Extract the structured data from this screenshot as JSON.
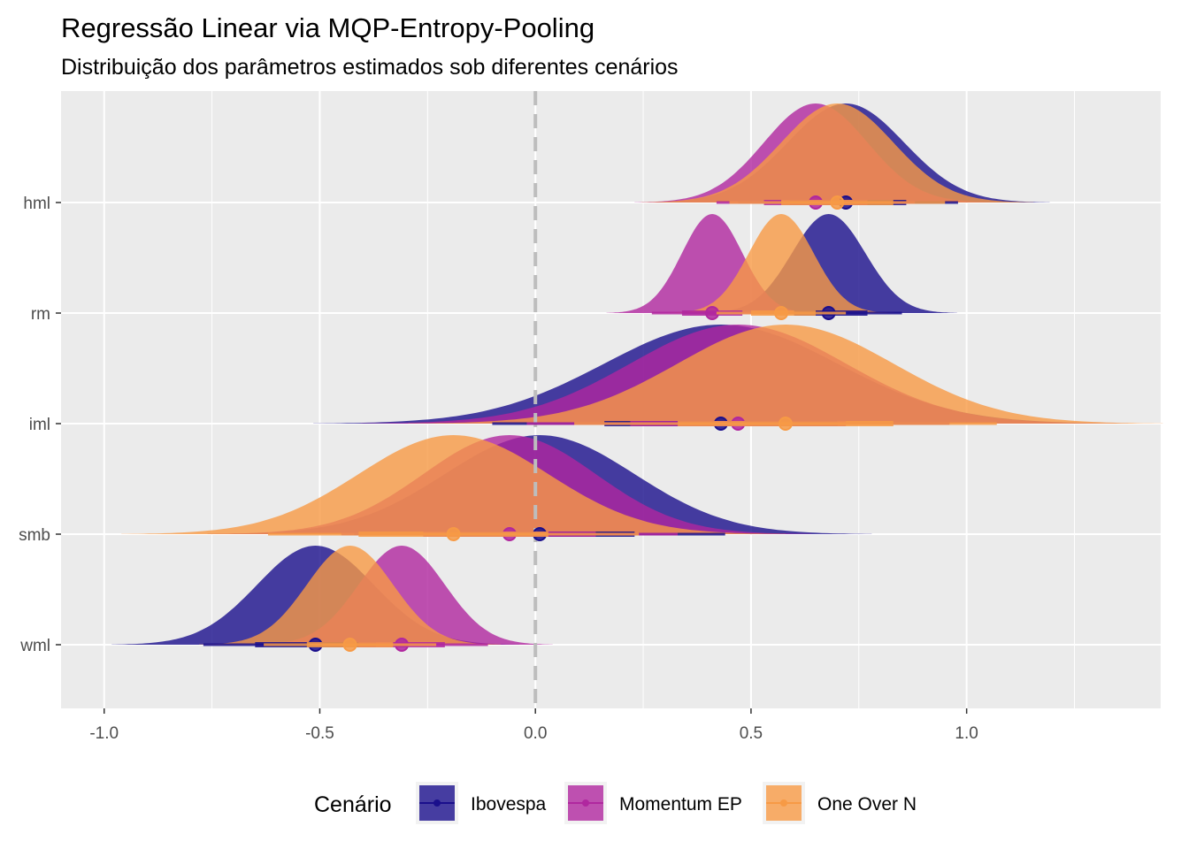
{
  "chart_data": {
    "type": "halfeye",
    "title": "Regressão Linear via MQP-Entropy-Pooling",
    "subtitle": "Distribuição dos parâmetros estimados sob diferentes cenários",
    "xlabel": "",
    "ylabel": "",
    "xlim": [
      -1.1,
      1.45
    ],
    "x_ticks": [
      -1.0,
      -0.5,
      0.0,
      0.5,
      1.0
    ],
    "x_tick_labels": [
      "-1.0",
      "-0.5",
      "0.0",
      "0.5",
      "1.0"
    ],
    "categories": [
      "hml",
      "rm",
      "iml",
      "smb",
      "wml"
    ],
    "reference_line": {
      "x": 0,
      "style": "dashed"
    },
    "grid": true,
    "legend": {
      "title": "Cenário",
      "position": "bottom"
    },
    "series": [
      {
        "name": "Ibovespa",
        "color": "#1a0f8c",
        "params": [
          {
            "variable": "hml",
            "median": 0.72,
            "sd": 0.135,
            "interval_66": [
              0.59,
              0.86
            ],
            "interval_95": [
              0.47,
              0.98
            ]
          },
          {
            "variable": "rm",
            "median": 0.68,
            "sd": 0.085,
            "interval_66": [
              0.6,
              0.77
            ],
            "interval_95": [
              0.52,
              0.85
            ]
          },
          {
            "variable": "iml",
            "median": 0.43,
            "sd": 0.27,
            "interval_66": [
              0.16,
              0.7
            ],
            "interval_95": [
              -0.1,
              0.96
            ]
          },
          {
            "variable": "smb",
            "median": 0.01,
            "sd": 0.22,
            "interval_66": [
              -0.21,
              0.23
            ],
            "interval_95": [
              -0.42,
              0.44
            ]
          },
          {
            "variable": "wml",
            "median": -0.51,
            "sd": 0.135,
            "interval_66": [
              -0.65,
              -0.37
            ],
            "interval_95": [
              -0.77,
              -0.24
            ]
          }
        ]
      },
      {
        "name": "Momentum EP",
        "color": "#b0279f",
        "params": [
          {
            "variable": "hml",
            "median": 0.65,
            "sd": 0.12,
            "interval_66": [
              0.53,
              0.77
            ],
            "interval_95": [
              0.42,
              0.88
            ]
          },
          {
            "variable": "rm",
            "median": 0.41,
            "sd": 0.07,
            "interval_66": [
              0.34,
              0.48
            ],
            "interval_95": [
              0.27,
              0.55
            ]
          },
          {
            "variable": "iml",
            "median": 0.47,
            "sd": 0.25,
            "interval_66": [
              0.22,
              0.72
            ],
            "interval_95": [
              -0.02,
              0.96
            ]
          },
          {
            "variable": "smb",
            "median": -0.06,
            "sd": 0.2,
            "interval_66": [
              -0.26,
              0.14
            ],
            "interval_95": [
              -0.45,
              0.33
            ]
          },
          {
            "variable": "wml",
            "median": -0.31,
            "sd": 0.1,
            "interval_66": [
              -0.41,
              -0.21
            ],
            "interval_95": [
              -0.51,
              -0.11
            ]
          }
        ]
      },
      {
        "name": "One Over N",
        "color": "#f79a45",
        "params": [
          {
            "variable": "hml",
            "median": 0.7,
            "sd": 0.13,
            "interval_66": [
              0.57,
              0.83
            ],
            "interval_95": [
              0.45,
              0.95
            ]
          },
          {
            "variable": "rm",
            "median": 0.57,
            "sd": 0.075,
            "interval_66": [
              0.5,
              0.65
            ],
            "interval_95": [
              0.42,
              0.72
            ]
          },
          {
            "variable": "iml",
            "median": 0.58,
            "sd": 0.25,
            "interval_66": [
              0.33,
              0.83
            ],
            "interval_95": [
              0.09,
              1.07
            ]
          },
          {
            "variable": "smb",
            "median": -0.19,
            "sd": 0.22,
            "interval_66": [
              -0.41,
              0.03
            ],
            "interval_95": [
              -0.62,
              0.24
            ]
          },
          {
            "variable": "wml",
            "median": -0.43,
            "sd": 0.1,
            "interval_66": [
              -0.53,
              -0.33
            ],
            "interval_95": [
              -0.63,
              -0.23
            ]
          }
        ]
      }
    ]
  }
}
